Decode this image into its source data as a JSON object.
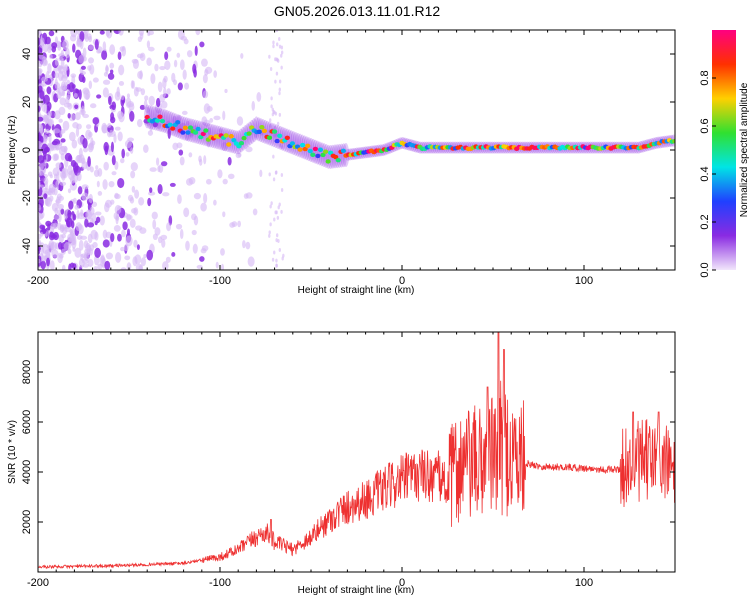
{
  "title": "GN05.2026.013.11.01.R12",
  "chart_data": [
    {
      "type": "heatmap",
      "name": "spectrogram",
      "xlabel": "Height of straight line (km)",
      "ylabel": "Frequency (Hz)",
      "xlim": [
        -200,
        150
      ],
      "ylim": [
        -50,
        50
      ],
      "xticks": [
        -200,
        -100,
        0,
        100
      ],
      "yticks": [
        -40,
        -20,
        0,
        20,
        40
      ],
      "xtick_labels": [
        "-200",
        "-100",
        "0",
        "100"
      ],
      "ytick_labels": [
        "-40",
        "-20",
        "0",
        "20",
        "40"
      ],
      "ridge": {
        "x": [
          -140,
          -130,
          -120,
          -110,
          -100,
          -90,
          -80,
          -70,
          -60,
          -50,
          -40,
          -30,
          -20,
          -10,
          0,
          10,
          20,
          30,
          40,
          50,
          60,
          70,
          80,
          90,
          100,
          110,
          120,
          130,
          140,
          150
        ],
        "y": [
          14,
          12,
          9,
          7,
          5,
          3,
          9,
          6,
          3,
          0,
          -3,
          -2,
          -1,
          0,
          3,
          1,
          1,
          1,
          1,
          1,
          1,
          1,
          1,
          1,
          1,
          1,
          1,
          1,
          3,
          4
        ]
      },
      "colorbar": {
        "label": "Normalized spectral amplitude",
        "min": 0.0,
        "max": 1.0,
        "ticks": [
          0.0,
          0.2,
          0.4,
          0.6,
          0.8
        ],
        "tick_labels": [
          "0.0",
          "0.2",
          "0.4",
          "0.6",
          "0.8"
        ],
        "colors": [
          "#f2e6fb",
          "#8a2be2",
          "#2040ff",
          "#00e5e5",
          "#30e030",
          "#ffd000",
          "#ff3000",
          "#ff0080"
        ]
      }
    },
    {
      "type": "line",
      "name": "snr-trace",
      "xlabel": "Height of straight line (km)",
      "ylabel": "SNR (10 * v/v)",
      "xlim": [
        -200,
        150
      ],
      "ylim": [
        0,
        9600
      ],
      "xticks": [
        -200,
        -100,
        0,
        100
      ],
      "yticks": [
        2000,
        4000,
        6000,
        8000
      ],
      "xtick_labels": [
        "-200",
        "-100",
        "0",
        "100"
      ],
      "ytick_labels": [
        "2000",
        "4000",
        "6000",
        "8000"
      ],
      "color": "#ee3030",
      "envelope": {
        "x": [
          -200,
          -160,
          -120,
          -100,
          -90,
          -80,
          -75,
          -70,
          -60,
          -50,
          -40,
          -30,
          -20,
          -10,
          0,
          10,
          20,
          25,
          30,
          40,
          50,
          55,
          60,
          65,
          70,
          80,
          90,
          100,
          110,
          120,
          125,
          130,
          140,
          150
        ],
        "y": [
          200,
          250,
          350,
          600,
          900,
          1400,
          1600,
          1200,
          900,
          1400,
          2100,
          2600,
          2900,
          3300,
          3700,
          3900,
          3800,
          3500,
          4200,
          4300,
          4600,
          5000,
          4700,
          4500,
          4300,
          4200,
          4200,
          4150,
          4100,
          4100,
          4300,
          4400,
          4500,
          4100
        ]
      },
      "peaks": [
        {
          "x": 47,
          "y": 7400
        },
        {
          "x": 53,
          "y": 9600
        },
        {
          "x": 56,
          "y": 8900
        },
        {
          "x": 127,
          "y": 6400
        },
        {
          "x": 141,
          "y": 6400
        },
        {
          "x": -72,
          "y": 2100
        }
      ]
    }
  ]
}
